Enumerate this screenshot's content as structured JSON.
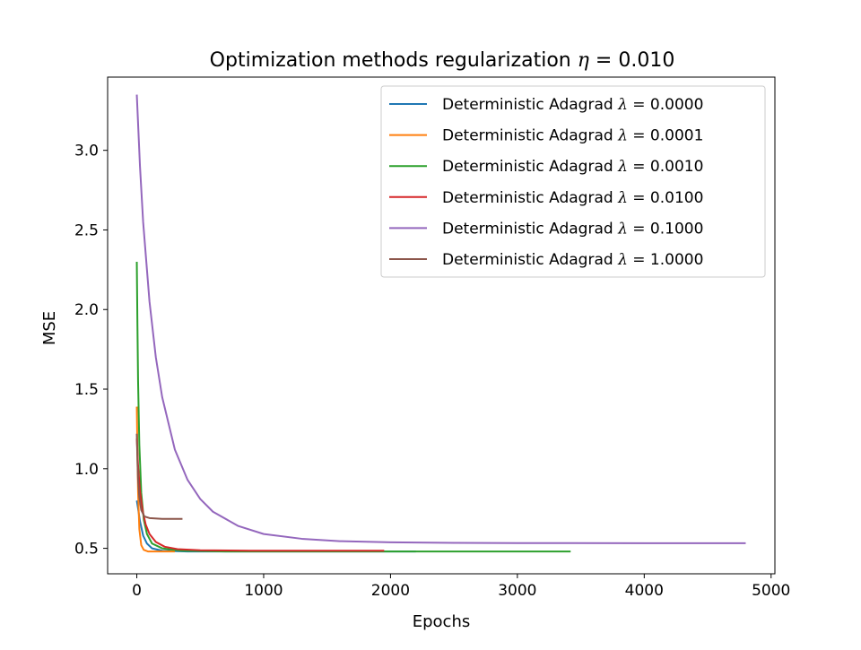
{
  "chart_data": {
    "type": "line",
    "title": "Optimization methods regularization η = 0.010",
    "title_parts": {
      "text": "Optimization methods regularization ",
      "symbol": "η",
      "suffix": " = 0.010"
    },
    "xlabel": "Epochs",
    "ylabel": "MSE",
    "xlim": [
      -230,
      5030
    ],
    "ylim": [
      0.34,
      3.46
    ],
    "xticks": [
      0,
      1000,
      2000,
      3000,
      4000,
      5000
    ],
    "xtick_labels": [
      "0",
      "1000",
      "2000",
      "3000",
      "4000",
      "5000"
    ],
    "yticks": [
      0.5,
      1.0,
      1.5,
      2.0,
      2.5,
      3.0
    ],
    "ytick_labels": [
      "0.5",
      "1.0",
      "1.5",
      "2.0",
      "2.5",
      "3.0"
    ],
    "grid": false,
    "legend_position": "top-right",
    "series": [
      {
        "name": "Deterministic Adagrad λ = 0.0000",
        "label_text": "Deterministic Adagrad ",
        "label_symbol": "λ",
        "label_suffix": " = 0.0000",
        "color": "#1f77b4",
        "points": [
          [
            0,
            0.8
          ],
          [
            10,
            0.75
          ],
          [
            25,
            0.67
          ],
          [
            50,
            0.58
          ],
          [
            80,
            0.53
          ],
          [
            120,
            0.5
          ],
          [
            200,
            0.485
          ],
          [
            400,
            0.48
          ],
          [
            800,
            0.48
          ],
          [
            1500,
            0.48
          ],
          [
            2200,
            0.48
          ]
        ]
      },
      {
        "name": "Deterministic Adagrad λ = 0.0001",
        "label_text": "Deterministic Adagrad ",
        "label_symbol": "λ",
        "label_suffix": " = 0.0001",
        "color": "#ff7f0e",
        "points": [
          [
            0,
            1.39
          ],
          [
            5,
            1.1
          ],
          [
            10,
            0.85
          ],
          [
            20,
            0.62
          ],
          [
            35,
            0.52
          ],
          [
            55,
            0.49
          ],
          [
            90,
            0.48
          ],
          [
            200,
            0.48
          ],
          [
            300,
            0.48
          ]
        ]
      },
      {
        "name": "Deterministic Adagrad λ = 0.0010",
        "label_text": "Deterministic Adagrad ",
        "label_symbol": "λ",
        "label_suffix": " = 0.0010",
        "color": "#2ca02c",
        "points": [
          [
            0,
            2.3
          ],
          [
            5,
            1.9
          ],
          [
            10,
            1.55
          ],
          [
            20,
            1.15
          ],
          [
            35,
            0.85
          ],
          [
            55,
            0.68
          ],
          [
            80,
            0.59
          ],
          [
            120,
            0.53
          ],
          [
            200,
            0.5
          ],
          [
            350,
            0.485
          ],
          [
            700,
            0.48
          ],
          [
            1500,
            0.48
          ],
          [
            2500,
            0.48
          ],
          [
            3420,
            0.48
          ]
        ]
      },
      {
        "name": "Deterministic Adagrad λ = 0.0100",
        "label_text": "Deterministic Adagrad ",
        "label_symbol": "λ",
        "label_suffix": " = 0.0100",
        "color": "#d62728",
        "points": [
          [
            0,
            1.19
          ],
          [
            10,
            1.02
          ],
          [
            25,
            0.86
          ],
          [
            45,
            0.74
          ],
          [
            70,
            0.65
          ],
          [
            100,
            0.59
          ],
          [
            150,
            0.54
          ],
          [
            220,
            0.51
          ],
          [
            320,
            0.495
          ],
          [
            500,
            0.488
          ],
          [
            900,
            0.485
          ],
          [
            1400,
            0.485
          ],
          [
            1950,
            0.485
          ]
        ]
      },
      {
        "name": "Deterministic Adagrad λ = 0.1000",
        "label_text": "Deterministic Adagrad ",
        "label_symbol": "λ",
        "label_suffix": " = 0.1000",
        "color": "#9467bd",
        "points": [
          [
            0,
            3.35
          ],
          [
            25,
            2.9
          ],
          [
            50,
            2.55
          ],
          [
            100,
            2.05
          ],
          [
            150,
            1.7
          ],
          [
            200,
            1.45
          ],
          [
            300,
            1.12
          ],
          [
            400,
            0.93
          ],
          [
            500,
            0.81
          ],
          [
            600,
            0.73
          ],
          [
            800,
            0.64
          ],
          [
            1000,
            0.59
          ],
          [
            1300,
            0.56
          ],
          [
            1600,
            0.545
          ],
          [
            2000,
            0.538
          ],
          [
            2500,
            0.534
          ],
          [
            3000,
            0.533
          ],
          [
            4000,
            0.532
          ],
          [
            4800,
            0.532
          ]
        ]
      },
      {
        "name": "Deterministic Adagrad λ = 1.0000",
        "label_text": "Deterministic Adagrad ",
        "label_symbol": "λ",
        "label_suffix": " = 1.0000",
        "color": "#8c564b",
        "points": [
          [
            0,
            1.22
          ],
          [
            5,
            1.05
          ],
          [
            10,
            0.93
          ],
          [
            20,
            0.82
          ],
          [
            35,
            0.74
          ],
          [
            60,
            0.7
          ],
          [
            100,
            0.69
          ],
          [
            200,
            0.685
          ],
          [
            360,
            0.685
          ]
        ]
      }
    ]
  }
}
